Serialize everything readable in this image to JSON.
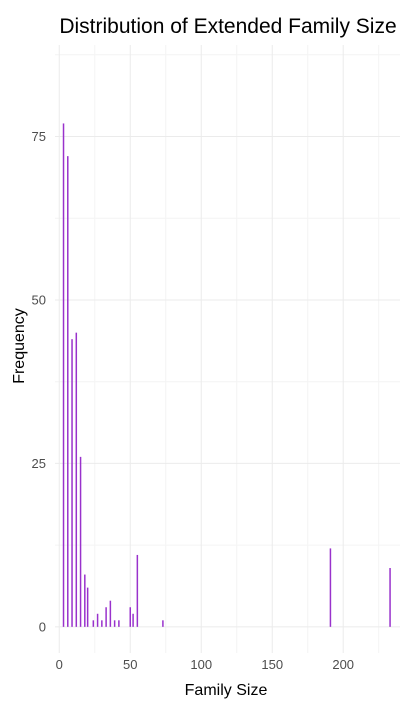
{
  "chart_data": {
    "type": "bar",
    "title": "Distribution of Extended Family Size",
    "xlabel": "Family Size",
    "ylabel": "Frequency",
    "xlim": [
      -3,
      240
    ],
    "ylim": [
      -4,
      89
    ],
    "x_ticks": [
      0,
      50,
      100,
      150,
      200
    ],
    "x_tick_labels": [
      "0",
      "50",
      "100",
      "150",
      "200"
    ],
    "y_ticks": [
      0,
      25,
      50,
      75
    ],
    "y_tick_labels": [
      "0",
      "25",
      "50",
      "75"
    ],
    "grid": true,
    "bar_color": "#9932cc",
    "x": [
      3,
      6,
      9,
      12,
      15,
      18,
      20,
      24,
      27,
      30,
      33,
      36,
      39,
      42,
      50,
      52,
      55,
      73,
      191,
      233
    ],
    "values": [
      77,
      72,
      44,
      45,
      26,
      8,
      6,
      1,
      2,
      1,
      3,
      4,
      1,
      1,
      3,
      2,
      11,
      1,
      12,
      9
    ]
  }
}
